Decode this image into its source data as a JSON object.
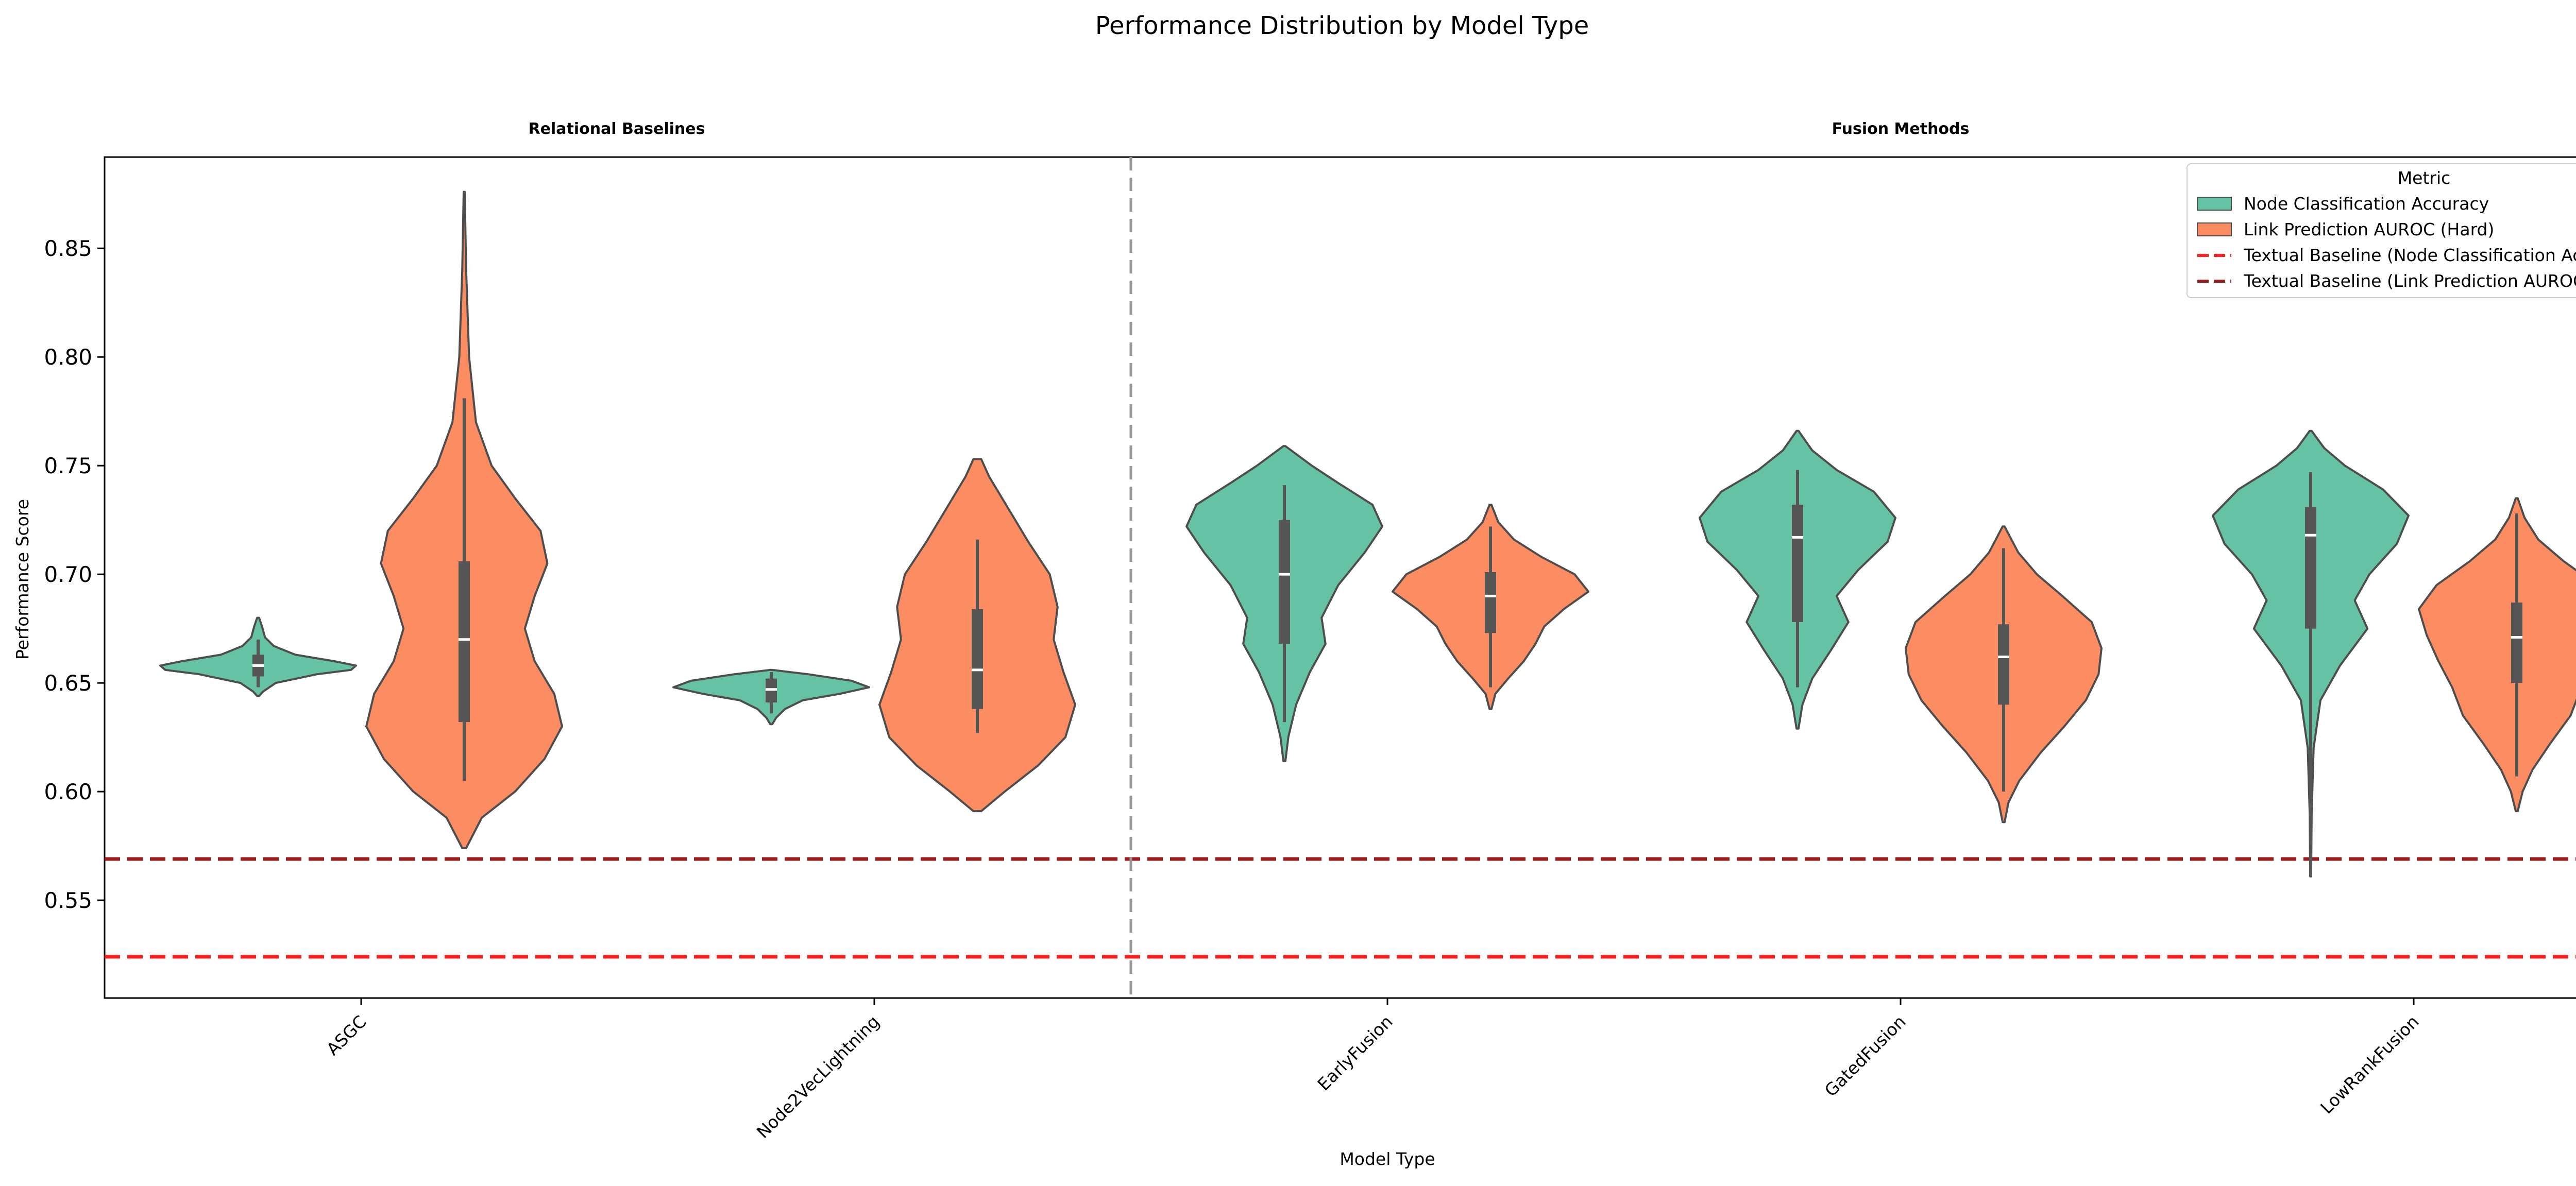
{
  "chart_data": {
    "type": "violin",
    "title": "Performance Distribution by Model Type",
    "xlabel": "Model Type",
    "ylabel": "Performance Score",
    "ylim": [
      0.505,
      0.892
    ],
    "yticks": [
      0.55,
      0.6,
      0.65,
      0.7,
      0.75,
      0.8,
      0.85
    ],
    "ytick_labels": [
      "0.55",
      "0.60",
      "0.65",
      "0.70",
      "0.75",
      "0.80",
      "0.85"
    ],
    "groups": [
      "Relational Baselines",
      "Fusion Methods"
    ],
    "categories": [
      "ASGC",
      "Node2VecLightning",
      "EarlyFusion",
      "GatedFusion",
      "LowRankFusion"
    ],
    "legend": {
      "title": "Metric",
      "placement": "top-right",
      "entries": [
        "Node Classification Accuracy",
        "Link Prediction AUROC (Hard)",
        "Textual Baseline (Node Classification Accuracy)",
        "Textual Baseline (Link Prediction AUROC (Hard))"
      ]
    },
    "colors": {
      "node": "#66c2a5",
      "link": "#fc8d62",
      "baseline_node": "#ff2020",
      "baseline_link": "#9b1c1c",
      "box": "#555555",
      "divider": "#999999"
    },
    "baselines": {
      "node_classification_accuracy": 0.524,
      "link_prediction_auroc_hard": 0.569
    },
    "series": [
      {
        "name": "Node Classification Accuracy",
        "violins": [
          {
            "min": 0.644,
            "max": 0.68,
            "q1": 0.653,
            "median": 0.658,
            "q3": 0.663,
            "wlo": 0.648,
            "whi": 0.67,
            "profile": [
              [
                0.644,
                0.01
              ],
              [
                0.646,
                0.05
              ],
              [
                0.65,
                0.18
              ],
              [
                0.654,
                0.6
              ],
              [
                0.656,
                0.95
              ],
              [
                0.658,
                1.0
              ],
              [
                0.66,
                0.78
              ],
              [
                0.663,
                0.38
              ],
              [
                0.667,
                0.16
              ],
              [
                0.671,
                0.07
              ],
              [
                0.676,
                0.04
              ],
              [
                0.68,
                0.01
              ]
            ]
          },
          {
            "min": 0.631,
            "max": 0.656,
            "q1": 0.641,
            "median": 0.647,
            "q3": 0.652,
            "wlo": 0.636,
            "whi": 0.655,
            "profile": [
              [
                0.631,
                0.01
              ],
              [
                0.634,
                0.05
              ],
              [
                0.638,
                0.14
              ],
              [
                0.642,
                0.32
              ],
              [
                0.645,
                0.7
              ],
              [
                0.648,
                1.0
              ],
              [
                0.651,
                0.82
              ],
              [
                0.654,
                0.38
              ],
              [
                0.656,
                0.01
              ]
            ]
          },
          {
            "min": 0.614,
            "max": 0.759,
            "q1": 0.668,
            "median": 0.7,
            "q3": 0.725,
            "wlo": 0.632,
            "whi": 0.741,
            "profile": [
              [
                0.614,
                0.01
              ],
              [
                0.625,
                0.04
              ],
              [
                0.64,
                0.12
              ],
              [
                0.655,
                0.26
              ],
              [
                0.668,
                0.42
              ],
              [
                0.68,
                0.38
              ],
              [
                0.695,
                0.55
              ],
              [
                0.71,
                0.82
              ],
              [
                0.722,
                1.0
              ],
              [
                0.732,
                0.9
              ],
              [
                0.742,
                0.55
              ],
              [
                0.75,
                0.28
              ],
              [
                0.759,
                0.01
              ]
            ]
          },
          {
            "min": 0.629,
            "max": 0.766,
            "q1": 0.678,
            "median": 0.717,
            "q3": 0.732,
            "wlo": 0.648,
            "whi": 0.748,
            "profile": [
              [
                0.629,
                0.01
              ],
              [
                0.64,
                0.05
              ],
              [
                0.652,
                0.15
              ],
              [
                0.665,
                0.34
              ],
              [
                0.678,
                0.52
              ],
              [
                0.69,
                0.4
              ],
              [
                0.702,
                0.62
              ],
              [
                0.715,
                0.92
              ],
              [
                0.726,
                1.0
              ],
              [
                0.738,
                0.78
              ],
              [
                0.748,
                0.4
              ],
              [
                0.757,
                0.15
              ],
              [
                0.766,
                0.01
              ]
            ]
          },
          {
            "min": 0.561,
            "max": 0.766,
            "q1": 0.675,
            "median": 0.718,
            "q3": 0.731,
            "wlo": 0.561,
            "whi": 0.747,
            "profile": [
              [
                0.561,
                0.005
              ],
              [
                0.59,
                0.01
              ],
              [
                0.62,
                0.03
              ],
              [
                0.642,
                0.1
              ],
              [
                0.658,
                0.3
              ],
              [
                0.675,
                0.58
              ],
              [
                0.688,
                0.45
              ],
              [
                0.7,
                0.6
              ],
              [
                0.714,
                0.88
              ],
              [
                0.727,
                1.0
              ],
              [
                0.739,
                0.74
              ],
              [
                0.75,
                0.35
              ],
              [
                0.758,
                0.14
              ],
              [
                0.766,
                0.01
              ]
            ]
          }
        ]
      },
      {
        "name": "Link Prediction AUROC (Hard)",
        "violins": [
          {
            "min": 0.574,
            "max": 0.876,
            "q1": 0.632,
            "median": 0.67,
            "q3": 0.706,
            "wlo": 0.605,
            "whi": 0.781,
            "profile": [
              [
                0.574,
                0.02
              ],
              [
                0.588,
                0.18
              ],
              [
                0.6,
                0.52
              ],
              [
                0.615,
                0.82
              ],
              [
                0.63,
                1.0
              ],
              [
                0.645,
                0.92
              ],
              [
                0.66,
                0.72
              ],
              [
                0.675,
                0.62
              ],
              [
                0.69,
                0.72
              ],
              [
                0.705,
                0.85
              ],
              [
                0.72,
                0.78
              ],
              [
                0.735,
                0.52
              ],
              [
                0.75,
                0.28
              ],
              [
                0.77,
                0.12
              ],
              [
                0.8,
                0.05
              ],
              [
                0.84,
                0.02
              ],
              [
                0.876,
                0.005
              ]
            ]
          },
          {
            "min": 0.591,
            "max": 0.753,
            "q1": 0.638,
            "median": 0.656,
            "q3": 0.684,
            "wlo": 0.627,
            "whi": 0.716,
            "profile": [
              [
                0.591,
                0.04
              ],
              [
                0.6,
                0.28
              ],
              [
                0.612,
                0.62
              ],
              [
                0.625,
                0.9
              ],
              [
                0.64,
                1.0
              ],
              [
                0.655,
                0.88
              ],
              [
                0.67,
                0.78
              ],
              [
                0.685,
                0.82
              ],
              [
                0.7,
                0.74
              ],
              [
                0.715,
                0.52
              ],
              [
                0.73,
                0.32
              ],
              [
                0.745,
                0.12
              ],
              [
                0.753,
                0.04
              ]
            ]
          },
          {
            "min": 0.638,
            "max": 0.732,
            "q1": 0.673,
            "median": 0.69,
            "q3": 0.701,
            "wlo": 0.648,
            "whi": 0.722,
            "profile": [
              [
                0.638,
                0.01
              ],
              [
                0.645,
                0.05
              ],
              [
                0.652,
                0.18
              ],
              [
                0.66,
                0.34
              ],
              [
                0.668,
                0.46
              ],
              [
                0.676,
                0.55
              ],
              [
                0.684,
                0.75
              ],
              [
                0.692,
                1.0
              ],
              [
                0.7,
                0.86
              ],
              [
                0.708,
                0.52
              ],
              [
                0.716,
                0.24
              ],
              [
                0.724,
                0.08
              ],
              [
                0.732,
                0.01
              ]
            ]
          },
          {
            "min": 0.586,
            "max": 0.722,
            "q1": 0.64,
            "median": 0.662,
            "q3": 0.677,
            "wlo": 0.6,
            "whi": 0.712,
            "profile": [
              [
                0.586,
                0.01
              ],
              [
                0.595,
                0.05
              ],
              [
                0.605,
                0.16
              ],
              [
                0.618,
                0.38
              ],
              [
                0.63,
                0.62
              ],
              [
                0.642,
                0.84
              ],
              [
                0.654,
                0.97
              ],
              [
                0.666,
                1.0
              ],
              [
                0.678,
                0.9
              ],
              [
                0.69,
                0.6
              ],
              [
                0.7,
                0.34
              ],
              [
                0.71,
                0.15
              ],
              [
                0.722,
                0.01
              ]
            ]
          },
          {
            "min": 0.591,
            "max": 0.735,
            "q1": 0.65,
            "median": 0.671,
            "q3": 0.687,
            "wlo": 0.607,
            "whi": 0.728,
            "profile": [
              [
                0.591,
                0.01
              ],
              [
                0.6,
                0.06
              ],
              [
                0.61,
                0.16
              ],
              [
                0.622,
                0.34
              ],
              [
                0.635,
                0.55
              ],
              [
                0.648,
                0.66
              ],
              [
                0.66,
                0.8
              ],
              [
                0.672,
                0.92
              ],
              [
                0.684,
                1.0
              ],
              [
                0.695,
                0.82
              ],
              [
                0.706,
                0.48
              ],
              [
                0.716,
                0.22
              ],
              [
                0.726,
                0.08
              ],
              [
                0.735,
                0.01
              ]
            ]
          }
        ]
      }
    ]
  }
}
